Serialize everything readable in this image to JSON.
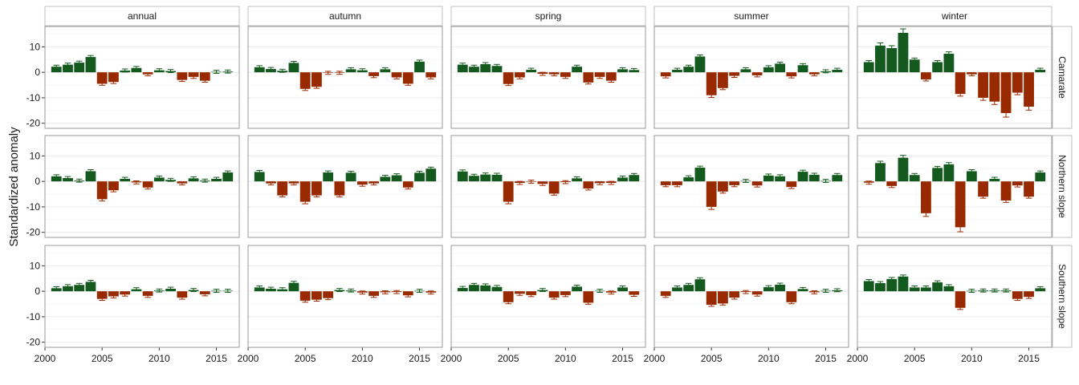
{
  "chart_data": {
    "type": "bar",
    "ylabel": "Standardized anomaly",
    "xlabel": "",
    "ylim": [
      -22,
      18
    ],
    "xlim": [
      2000,
      2017
    ],
    "yticks": [
      -20,
      -10,
      0,
      10
    ],
    "ytick_labels": [
      "-20",
      "-10",
      "0",
      "10"
    ],
    "xticks": [
      2000,
      2005,
      2010,
      2015
    ],
    "xtick_labels": [
      "2000",
      "2005",
      "2010",
      "2015"
    ],
    "years": [
      2001,
      2002,
      2003,
      2004,
      2005,
      2006,
      2007,
      2008,
      2009,
      2010,
      2011,
      2012,
      2013,
      2014,
      2015,
      2016
    ],
    "columns": [
      "annual",
      "autumn",
      "spring",
      "summer",
      "winter"
    ],
    "rows": [
      "Camarate",
      "Northern slope",
      "Southern slope"
    ],
    "colors": {
      "positive": "#145a1e",
      "negative": "#992a00"
    },
    "grid": true,
    "panels": [
      {
        "row": "Camarate",
        "col": "annual",
        "values": [
          2.2,
          3.0,
          3.8,
          6.0,
          -4.5,
          -3.8,
          0.7,
          1.7,
          -0.8,
          0.8,
          0.5,
          -3.0,
          -1.8,
          -3.3,
          0.2,
          0.3
        ]
      },
      {
        "row": "Camarate",
        "col": "autumn",
        "values": [
          2.0,
          1.3,
          0.6,
          3.7,
          -6.5,
          -5.7,
          -0.2,
          -0.2,
          1.2,
          0.8,
          -1.5,
          1.2,
          -2.0,
          -4.5,
          4.2,
          -2.0
        ]
      },
      {
        "row": "Camarate",
        "col": "spring",
        "values": [
          3.0,
          2.2,
          3.2,
          2.5,
          -4.6,
          -2.0,
          1.0,
          -0.6,
          -0.8,
          -1.8,
          2.2,
          -4.0,
          -1.8,
          -3.3,
          1.2,
          0.9
        ]
      },
      {
        "row": "Camarate",
        "col": "summer",
        "values": [
          -1.6,
          1.0,
          2.2,
          6.2,
          -9.0,
          -6.2,
          -1.4,
          1.2,
          -1.2,
          2.0,
          3.4,
          -1.6,
          2.8,
          -0.8,
          0.4,
          1.0
        ]
      },
      {
        "row": "Camarate",
        "col": "winter",
        "values": [
          4.0,
          10.5,
          9.5,
          15.5,
          5.0,
          -2.8,
          4.0,
          7.3,
          -8.5,
          -0.8,
          -10.0,
          -11.5,
          -16.0,
          -8.0,
          -13.5,
          1.0
        ]
      },
      {
        "row": "Northern slope",
        "col": "annual",
        "values": [
          2.0,
          1.3,
          0.3,
          4.0,
          -7.0,
          -3.5,
          1.0,
          -0.4,
          -2.4,
          1.5,
          0.6,
          -0.8,
          1.2,
          0.3,
          1.0,
          3.5
        ]
      },
      {
        "row": "Northern slope",
        "col": "autumn",
        "values": [
          3.7,
          -0.8,
          -5.5,
          -0.8,
          -8.0,
          -5.5,
          3.5,
          -5.5,
          3.4,
          -1.3,
          -0.8,
          1.8,
          2.4,
          -2.4,
          3.4,
          5.0
        ]
      },
      {
        "row": "Northern slope",
        "col": "spring",
        "values": [
          3.9,
          2.2,
          2.7,
          2.6,
          -8.0,
          -0.6,
          -0.1,
          -1.0,
          -4.8,
          -0.3,
          1.2,
          -2.8,
          -0.7,
          -0.6,
          1.5,
          2.5
        ]
      },
      {
        "row": "Northern slope",
        "col": "summer",
        "values": [
          -1.5,
          -1.5,
          1.6,
          5.4,
          -10.0,
          -4.0,
          -1.5,
          0.2,
          -1.6,
          2.3,
          2.0,
          -2.2,
          3.8,
          2.6,
          0.2,
          2.5
        ]
      },
      {
        "row": "Northern slope",
        "col": "winter",
        "values": [
          -0.5,
          7.2,
          -1.8,
          9.3,
          2.5,
          -12.5,
          5.3,
          6.7,
          -18.0,
          4.0,
          -6.0,
          1.0,
          -7.5,
          -1.6,
          -6.0,
          3.5
        ]
      },
      {
        "row": "Southern slope",
        "col": "annual",
        "values": [
          1.2,
          2.0,
          2.5,
          3.7,
          -3.0,
          -2.0,
          -1.3,
          0.8,
          -1.8,
          0.3,
          1.0,
          -2.5,
          0.5,
          -1.2,
          0.2,
          0.2
        ]
      },
      {
        "row": "Southern slope",
        "col": "autumn",
        "values": [
          1.5,
          1.0,
          0.8,
          3.3,
          -3.7,
          -3.3,
          -2.7,
          0.5,
          0.3,
          -0.5,
          -1.8,
          -0.4,
          -0.3,
          -1.6,
          0.2,
          -0.5
        ]
      },
      {
        "row": "Southern slope",
        "col": "spring",
        "values": [
          1.3,
          2.5,
          2.3,
          1.7,
          -4.3,
          -1.0,
          -1.5,
          0.5,
          -2.5,
          -1.5,
          1.8,
          -4.5,
          0.2,
          -0.5,
          1.5,
          -1.4
        ]
      },
      {
        "row": "Southern slope",
        "col": "summer",
        "values": [
          -1.8,
          1.5,
          2.5,
          4.7,
          -5.3,
          -4.8,
          -2.5,
          -0.3,
          -1.3,
          1.6,
          2.6,
          -4.3,
          0.9,
          -0.4,
          0.2,
          0.4
        ]
      },
      {
        "row": "Southern slope",
        "col": "winter",
        "values": [
          4.0,
          3.2,
          4.8,
          5.8,
          1.5,
          1.5,
          3.5,
          2.0,
          -6.5,
          0.2,
          0.3,
          0.3,
          0.3,
          -3.0,
          -2.2,
          1.2
        ]
      }
    ]
  }
}
